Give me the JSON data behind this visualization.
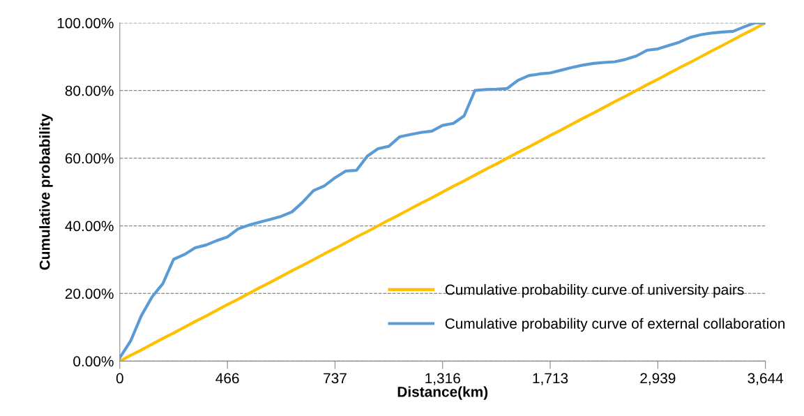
{
  "chart_data": {
    "type": "line",
    "xlabel": "Distance(km)",
    "ylabel": "Cumulative probability",
    "categories": [
      "0",
      null,
      null,
      null,
      null,
      null,
      null,
      null,
      null,
      null,
      "466",
      null,
      null,
      null,
      null,
      null,
      null,
      null,
      null,
      null,
      "737",
      null,
      null,
      null,
      null,
      null,
      null,
      null,
      null,
      null,
      "1,316",
      null,
      null,
      null,
      null,
      null,
      null,
      null,
      null,
      null,
      "1,713",
      null,
      null,
      null,
      null,
      null,
      null,
      null,
      null,
      null,
      "2,939",
      null,
      null,
      null,
      null,
      null,
      null,
      null,
      null,
      null,
      "3,644"
    ],
    "ylim": [
      0,
      100
    ],
    "yticks": [
      {
        "value": 0,
        "label": "0.00%"
      },
      {
        "value": 20,
        "label": "20.00%"
      },
      {
        "value": 40,
        "label": "40.00%"
      },
      {
        "value": 60,
        "label": "60.00%"
      },
      {
        "value": 80,
        "label": "80.00%"
      },
      {
        "value": 100,
        "label": "100.00%"
      }
    ],
    "grid": "y",
    "legend": "bottom right",
    "line_style": "solid",
    "marker": "none",
    "series": [
      {
        "name": "Cumulative probability curve of university pairs",
        "color": "#ffc000",
        "values": [
          0,
          1.7,
          3.3,
          5,
          6.7,
          8.3,
          10,
          11.7,
          13.3,
          15,
          16.7,
          18.3,
          20,
          21.7,
          23.3,
          25,
          26.7,
          28.3,
          30,
          31.7,
          33.3,
          35,
          36.7,
          38.3,
          40,
          41.7,
          43.3,
          45,
          46.7,
          48.3,
          50,
          51.7,
          53.3,
          55,
          56.7,
          58.3,
          60,
          61.7,
          63.3,
          65,
          66.7,
          68.3,
          70,
          71.7,
          73.3,
          75,
          76.7,
          78.3,
          80,
          81.7,
          83.3,
          85,
          86.7,
          88.3,
          90,
          91.7,
          93.3,
          95,
          96.7,
          98.3,
          100
        ]
      },
      {
        "name": "Cumulative probability curve of external collaboration",
        "color": "#5b9bd5",
        "values": [
          1.0,
          5.9,
          13.4,
          19.0,
          22.9,
          30.1,
          31.5,
          33.5,
          34.3,
          35.6,
          36.7,
          39.1,
          40.2,
          41.1,
          41.9,
          42.8,
          44.1,
          47.0,
          50.4,
          51.8,
          54.2,
          56.2,
          56.4,
          60.6,
          62.8,
          63.5,
          66.3,
          67.0,
          67.6,
          68.0,
          69.7,
          70.3,
          72.5,
          80.0,
          80.3,
          80.4,
          80.6,
          83.0,
          84.4,
          84.9,
          85.2,
          86.0,
          86.8,
          87.5,
          88.0,
          88.3,
          88.5,
          89.2,
          90.2,
          91.9,
          92.3,
          93.3,
          94.3,
          95.7,
          96.5,
          97.0,
          97.3,
          97.5,
          98.8,
          100,
          100
        ]
      }
    ]
  }
}
